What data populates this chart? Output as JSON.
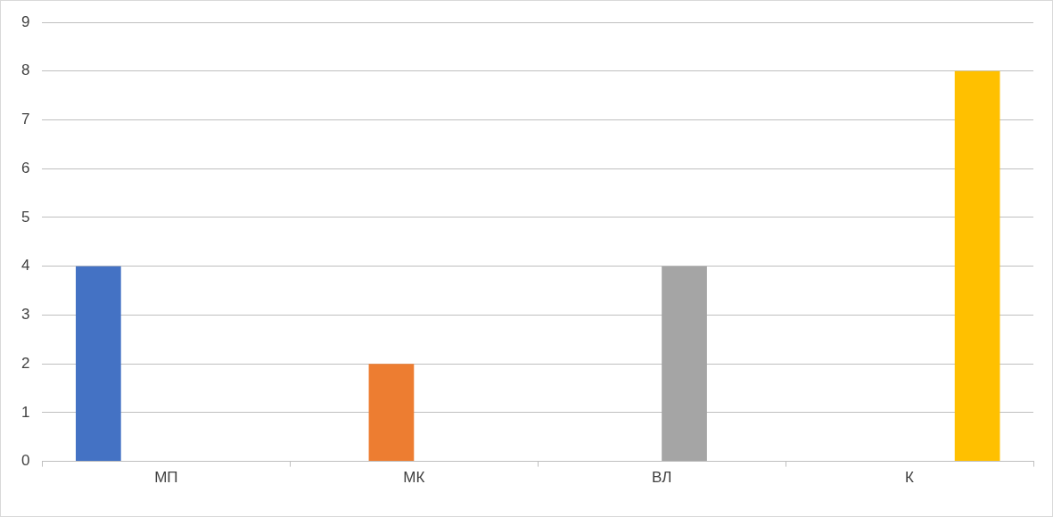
{
  "chart_data": {
    "type": "bar",
    "categories": [
      "МП",
      "МК",
      "ВЛ",
      "К"
    ],
    "series": [
      {
        "color": "#4472c4",
        "values": [
          4,
          null,
          null,
          null
        ]
      },
      {
        "color": "#ed7d31",
        "values": [
          null,
          2,
          null,
          null
        ]
      },
      {
        "color": "#a5a5a5",
        "values": [
          null,
          null,
          4,
          null
        ]
      },
      {
        "color": "#ffc000",
        "values": [
          null,
          null,
          null,
          8
        ]
      }
    ],
    "ylim": [
      0,
      9
    ],
    "yticks": [
      0,
      1,
      2,
      3,
      4,
      5,
      6,
      7,
      8,
      9
    ],
    "grid": "y",
    "legend": false
  }
}
